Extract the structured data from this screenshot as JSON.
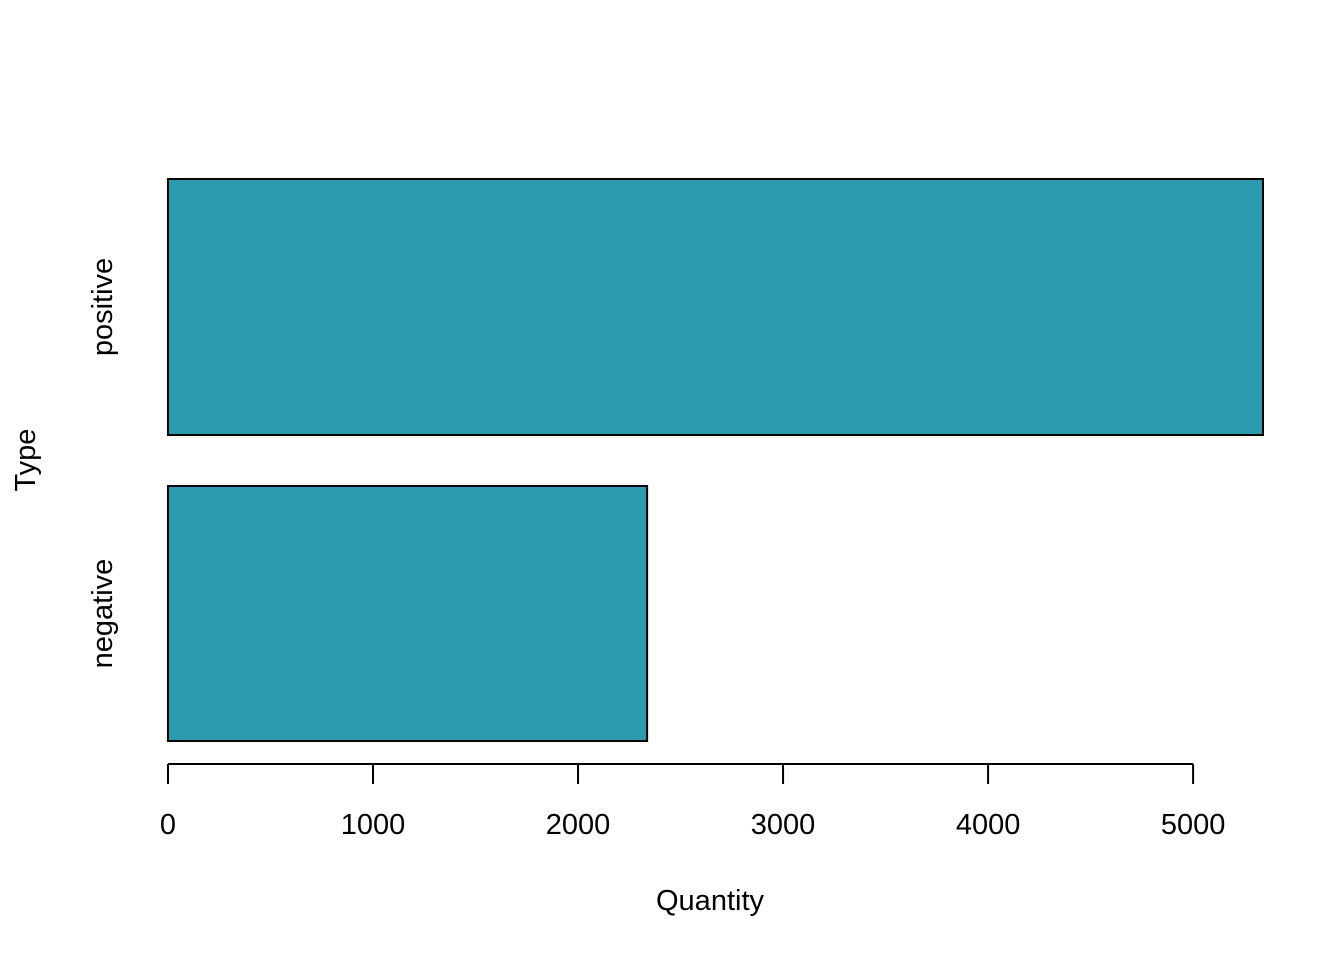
{
  "chart_data": {
    "type": "bar",
    "orientation": "horizontal",
    "title": "",
    "categories": [
      "negative",
      "positive"
    ],
    "values": [
      2337,
      5341
    ],
    "xlabel": "Quantity",
    "ylabel": "Type",
    "xlim": [
      0,
      5341
    ],
    "xticks": [
      0,
      1000,
      2000,
      3000,
      4000,
      5000
    ],
    "xtick_labels": [
      "0",
      "1000",
      "2000",
      "3000",
      "4000",
      "5000"
    ],
    "grid": false,
    "legend": "none",
    "bar_color": "#2A9AAD",
    "bar_edge_color": "#000000"
  }
}
